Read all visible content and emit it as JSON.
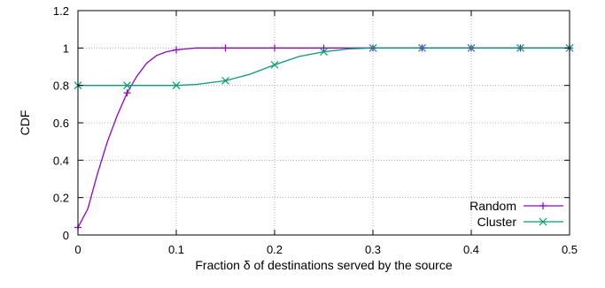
{
  "chart_data": {
    "type": "line",
    "title": "",
    "xlabel": "Fraction δ of destinations served by the source",
    "ylabel": "CDF",
    "xlim": [
      0,
      0.5
    ],
    "ylim": [
      0,
      1.2
    ],
    "xticks": [
      "0",
      "0.1",
      "0.2",
      "0.3",
      "0.4",
      "0.5"
    ],
    "yticks": [
      "0",
      "0.2",
      "0.4",
      "0.6",
      "0.8",
      "1",
      "1.2"
    ],
    "grid": true,
    "legend": "bottom-right",
    "series": [
      {
        "name": "Random",
        "color": "#9400d3",
        "marker": "plus",
        "x": [
          0,
          0.01,
          0.02,
          0.03,
          0.04,
          0.05,
          0.06,
          0.07,
          0.08,
          0.09,
          0.1,
          0.11,
          0.12,
          0.13,
          0.14,
          0.15,
          0.2,
          0.25,
          0.3,
          0.35,
          0.4,
          0.45,
          0.5
        ],
        "y": [
          0.04,
          0.14,
          0.33,
          0.5,
          0.64,
          0.76,
          0.85,
          0.92,
          0.96,
          0.98,
          0.99,
          0.995,
          1.0,
          1.0,
          1.0,
          1.0,
          1.0,
          1.0,
          1.0,
          1.0,
          1.0,
          1.0,
          1.0
        ],
        "marker_x": [
          0,
          0.05,
          0.1,
          0.15,
          0.2,
          0.25,
          0.3,
          0.35,
          0.4,
          0.45,
          0.5
        ],
        "marker_y": [
          0.04,
          0.76,
          0.99,
          1.0,
          1.0,
          1.0,
          1.0,
          1.0,
          1.0,
          1.0,
          1.0
        ]
      },
      {
        "name": "Cluster",
        "color": "#009e73",
        "marker": "cross",
        "x": [
          0,
          0.05,
          0.1,
          0.12,
          0.15,
          0.175,
          0.2,
          0.225,
          0.25,
          0.275,
          0.3,
          0.35,
          0.4,
          0.45,
          0.5
        ],
        "y": [
          0.8,
          0.8,
          0.8,
          0.805,
          0.825,
          0.86,
          0.91,
          0.955,
          0.98,
          0.995,
          1.0,
          1.0,
          1.0,
          1.0,
          1.0
        ],
        "marker_x": [
          0,
          0.05,
          0.1,
          0.15,
          0.2,
          0.25,
          0.3,
          0.35,
          0.4,
          0.45,
          0.5
        ],
        "marker_y": [
          0.8,
          0.8,
          0.8,
          0.825,
          0.91,
          0.98,
          1.0,
          1.0,
          1.0,
          1.0,
          1.0
        ]
      }
    ]
  }
}
